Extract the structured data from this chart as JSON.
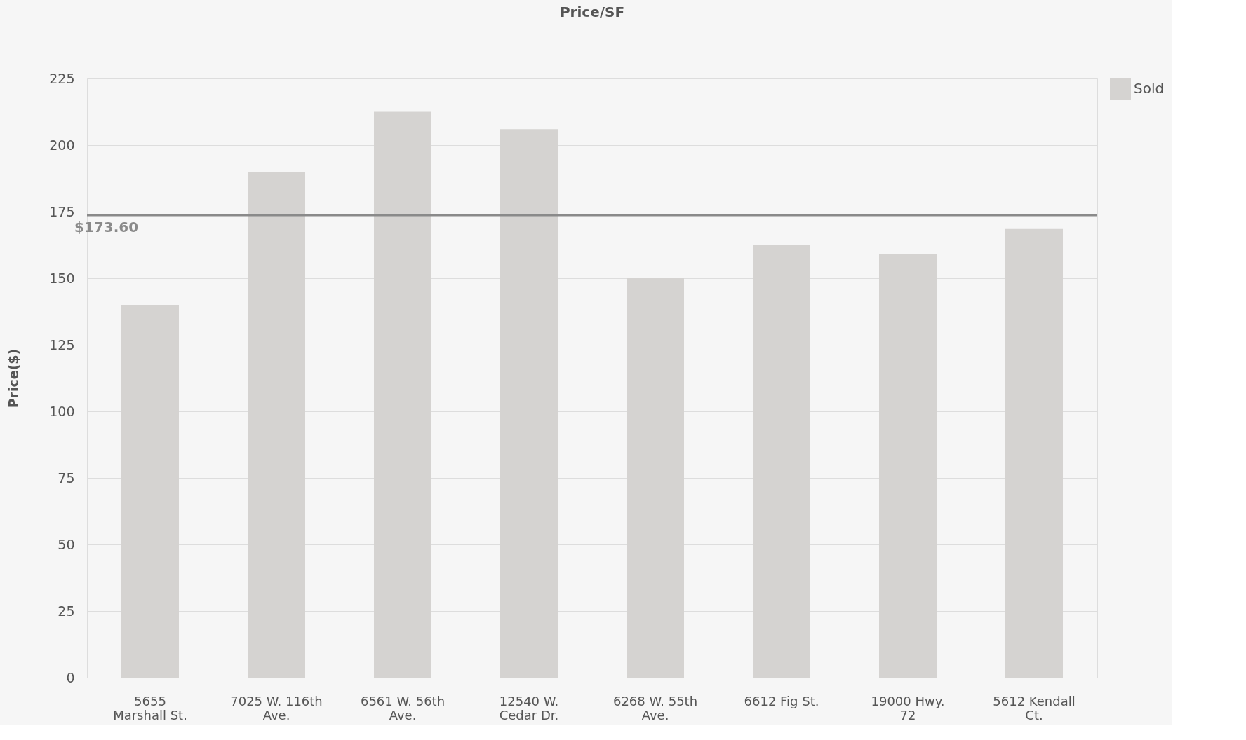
{
  "chart_data": {
    "type": "bar",
    "title": "Price/SF",
    "ylabel": "Price($)",
    "categories": [
      "5655\nMarshall St.",
      "7025 W. 116th\nAve.",
      "6561 W. 56th\nAve.",
      "12540 W.\nCedar Dr.",
      "6268 W. 55th\nAve.",
      "6612 Fig St.",
      "19000 Hwy.\n72",
      "5612 Kendall\nCt."
    ],
    "series": [
      {
        "name": "Sold",
        "color": "#d5d3d1",
        "values": [
          140,
          190,
          212.5,
          206,
          150,
          162.5,
          159,
          168.5
        ]
      }
    ],
    "ylim": [
      0,
      225
    ],
    "yticks": [
      0,
      25,
      50,
      75,
      100,
      125,
      150,
      175,
      200,
      225
    ],
    "ref_lines": [
      {
        "axis": "y",
        "value": 173.6,
        "label": "$173.60",
        "color": "#8a8a8a"
      }
    ],
    "grid": "y",
    "legend": "right"
  }
}
